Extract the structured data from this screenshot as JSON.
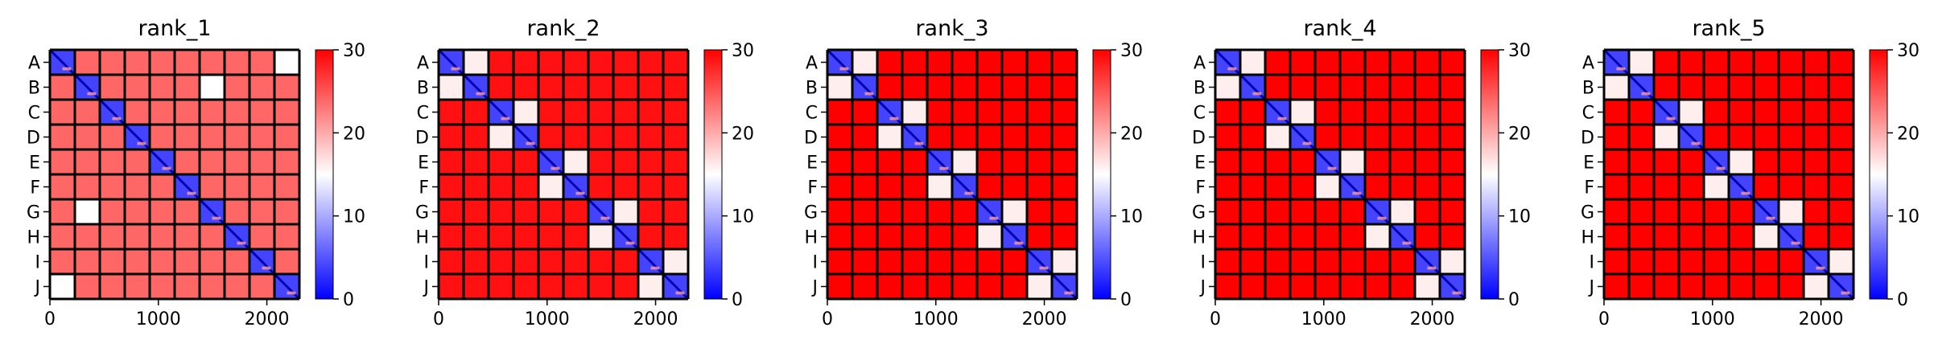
{
  "chart_data": {
    "type": "heatmap",
    "panels": [
      {
        "title": "rank_1",
        "pair_pattern": [],
        "offdiag_level": 24,
        "extra_offdiag": [
          [
            1,
            6
          ],
          [
            6,
            1
          ],
          [
            0,
            9
          ],
          [
            9,
            0
          ]
        ]
      },
      {
        "title": "rank_2",
        "pair_pattern": [
          [
            0,
            1
          ],
          [
            2,
            3
          ],
          [
            4,
            5
          ],
          [
            6,
            7
          ],
          [
            8,
            9
          ]
        ],
        "offdiag_level": 29,
        "extra_offdiag": []
      },
      {
        "title": "rank_3",
        "pair_pattern": [
          [
            0,
            1
          ],
          [
            2,
            3
          ],
          [
            4,
            5
          ],
          [
            6,
            7
          ],
          [
            8,
            9
          ]
        ],
        "offdiag_level": 30,
        "extra_offdiag": []
      },
      {
        "title": "rank_4",
        "pair_pattern": [
          [
            0,
            1
          ],
          [
            2,
            3
          ],
          [
            4,
            5
          ],
          [
            6,
            7
          ],
          [
            8,
            9
          ]
        ],
        "offdiag_level": 30,
        "extra_offdiag": []
      },
      {
        "title": "rank_5",
        "pair_pattern": [
          [
            0,
            1
          ],
          [
            2,
            3
          ],
          [
            4,
            5
          ],
          [
            6,
            7
          ],
          [
            8,
            9
          ]
        ],
        "offdiag_level": 30,
        "extra_offdiag": []
      }
    ],
    "y_tick_labels": [
      "A",
      "B",
      "C",
      "D",
      "E",
      "F",
      "G",
      "H",
      "I",
      "J"
    ],
    "x_ticks": [
      0,
      1000,
      2000
    ],
    "x_range": [
      0,
      2300
    ],
    "colorbar": {
      "ticks": [
        0,
        10,
        20,
        30
      ],
      "range": [
        0,
        30
      ],
      "colormap": "bwr"
    },
    "colors": {
      "low": "#0000ff",
      "mid": "#ffffff",
      "high": "#ff0000",
      "grid": "#000000"
    }
  }
}
